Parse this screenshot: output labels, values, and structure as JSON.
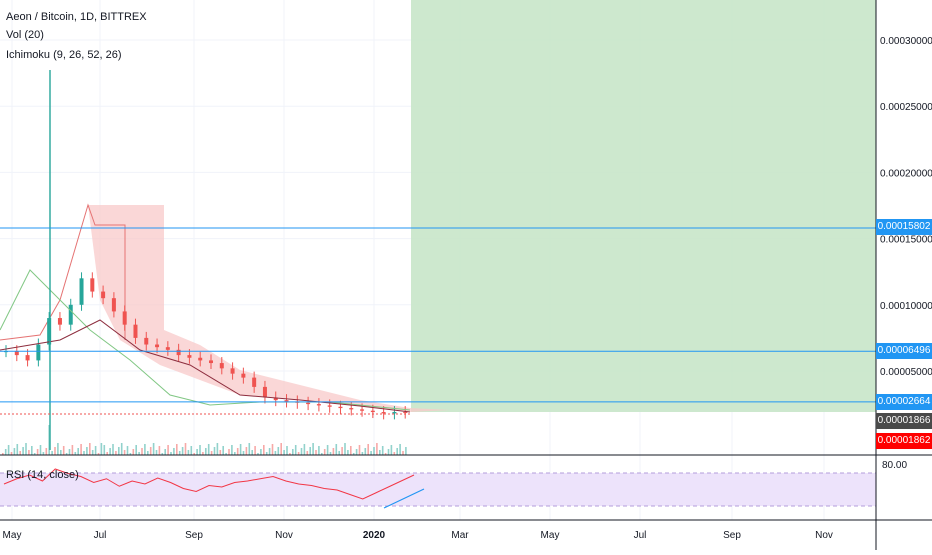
{
  "legend": {
    "symbol": "Aeon / Bitcoin, 1D, BITTREX",
    "volume": "Vol (20)",
    "ichimoku": "Ichimoku (9, 26, 52, 26)",
    "rsi": "RSI (14, close)"
  },
  "colors": {
    "horizontal_line": "#2196f3",
    "projection_zone": "#c8e6c9",
    "cloud_bear": "#f8c9c9",
    "cloud_bull": "#c8e6c9",
    "candle_up": "#26a69a",
    "candle_down": "#ef5350",
    "rsi_line": "#f23645",
    "rsi_band": "#ede3fb",
    "trend_line": "#2196f3",
    "tag_blue": "#2196f3",
    "tag_dark": "#4a4a4a",
    "tag_red": "#ff0000"
  },
  "chart_data": {
    "type": "candlestick",
    "title": "Aeon / Bitcoin, 1D, BITTREX",
    "x_ticks": [
      "May",
      "Jul",
      "Sep",
      "Nov",
      "2020",
      "Mar",
      "May",
      "Jul",
      "Sep",
      "Nov"
    ],
    "y_ticks": [
      "0.00005000",
      "0.00010000",
      "0.00015000",
      "0.00020000",
      "0.00025000",
      "0.00030000"
    ],
    "price_labels": [
      {
        "text": "0.00015802",
        "value": 0.00015802,
        "style": "blue"
      },
      {
        "text": "0.00006496",
        "value": 6.496e-05,
        "style": "blue"
      },
      {
        "text": "0.00002664",
        "value": 2.664e-05,
        "style": "blue"
      },
      {
        "text": "0.00001866",
        "value": 1.866e-05,
        "style": "dark"
      },
      {
        "text": "0.00001862",
        "value": 1.862e-05,
        "style": "red"
      }
    ],
    "horizontal_levels": [
      0.00015802,
      6.496e-05,
      2.664e-05
    ],
    "close_series": [
      6.5e-05,
      6.2e-05,
      5.8e-05,
      7e-05,
      9e-05,
      8.5e-05,
      0.0001,
      0.00012,
      0.00011,
      0.000105,
      9.5e-05,
      8.5e-05,
      7.5e-05,
      7e-05,
      6.8e-05,
      6.6e-05,
      6.2e-05,
      6e-05,
      5.8e-05,
      5.6e-05,
      5.2e-05,
      4.8e-05,
      4.5e-05,
      3.8e-05,
      3e-05,
      2.8e-05,
      2.7e-05,
      2.6e-05,
      2.5e-05,
      2.4e-05,
      2.3e-05,
      2.2e-05,
      2.1e-05,
      2e-05,
      1.9e-05,
      1.8e-05,
      1.9e-05,
      1.86e-05
    ],
    "rsi": {
      "upper_band_label": "80.00",
      "values": [
        48,
        55,
        60,
        52,
        68,
        62,
        58,
        50,
        55,
        45,
        52,
        48,
        56,
        50,
        42,
        38,
        46,
        44,
        50,
        52,
        55,
        58,
        52,
        48,
        46,
        42,
        40,
        34,
        28,
        36,
        44,
        52,
        60
      ]
    }
  }
}
